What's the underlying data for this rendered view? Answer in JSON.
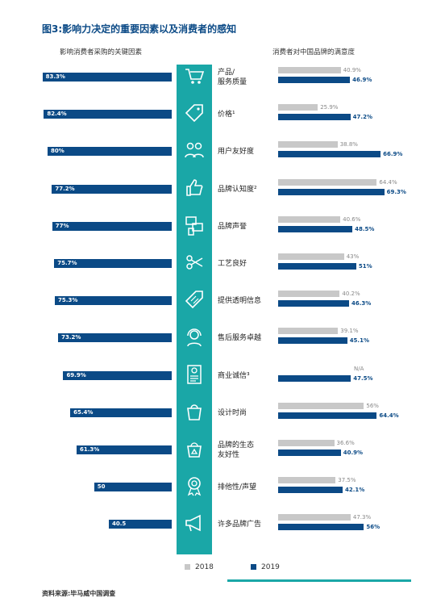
{
  "title": "图3:影响力决定的重要因素以及消费者的感知",
  "left_subtitle": "影响消费者采购的关键因素",
  "right_subtitle": "消费者对中国品牌的满意度",
  "source": "资料来源:毕马威中国调查",
  "legend": {
    "y2018": "2018",
    "y2019": "2019",
    "color2018": "#c8c8c8",
    "color2019": "#0b4a86"
  },
  "chart_data": {
    "type": "bar",
    "categories": [
      "产品/\n服务质量",
      "价格¹",
      "用户友好度",
      "品牌认知度²",
      "品牌声誉",
      "工艺良好",
      "提供透明信息",
      "售后服务卓越",
      "商业诚信³",
      "设计时尚",
      "品牌的生态\n友好性",
      "排他性/声望",
      "许多品牌广告"
    ],
    "icons": [
      "cart-icon",
      "price-tag-icon",
      "users-icon",
      "thumbs-up-icon",
      "reputation-icon",
      "scissors-icon",
      "info-tag-icon",
      "headset-icon",
      "certificate-icon",
      "shopping-bag-icon",
      "eco-bag-icon",
      "award-medal-icon",
      "megaphone-icon"
    ],
    "key_factors": {
      "values": [
        83.3,
        82.4,
        80,
        77.2,
        77,
        75.7,
        75.3,
        73.2,
        69.9,
        65.4,
        61.3,
        50,
        40.5
      ],
      "labels": [
        "83.3%",
        "82.4%",
        "80%",
        "77.2%",
        "77%",
        "75.7%",
        "75.3%",
        "73.2%",
        "69.9%",
        "65.4%",
        "61.3%",
        "50",
        "40.5"
      ]
    },
    "satisfaction": {
      "series": [
        {
          "name": "2018",
          "values": [
            40.9,
            25.9,
            38.8,
            64.4,
            40.6,
            43,
            40.2,
            39.1,
            null,
            56,
            36.6,
            37.5,
            47.3
          ],
          "labels": [
            "40.9%",
            "25.9%",
            "38.8%",
            "64.4%",
            "40.6%",
            "43%",
            "40.2%",
            "39.1%",
            "N/A",
            "56%",
            "36.6%",
            "37.5%",
            "47.3%"
          ]
        },
        {
          "name": "2019",
          "values": [
            46.9,
            47.2,
            66.9,
            69.3,
            48.5,
            51,
            46.3,
            45.1,
            47.5,
            64.4,
            40.9,
            42.1,
            56
          ],
          "labels": [
            "46.9%",
            "47.2%",
            "66.9%",
            "69.3%",
            "48.5%",
            "51%",
            "46.3%",
            "45.1%",
            "47.5%",
            "64.4%",
            "40.9%",
            "42.1%",
            "56%"
          ]
        }
      ]
    }
  }
}
